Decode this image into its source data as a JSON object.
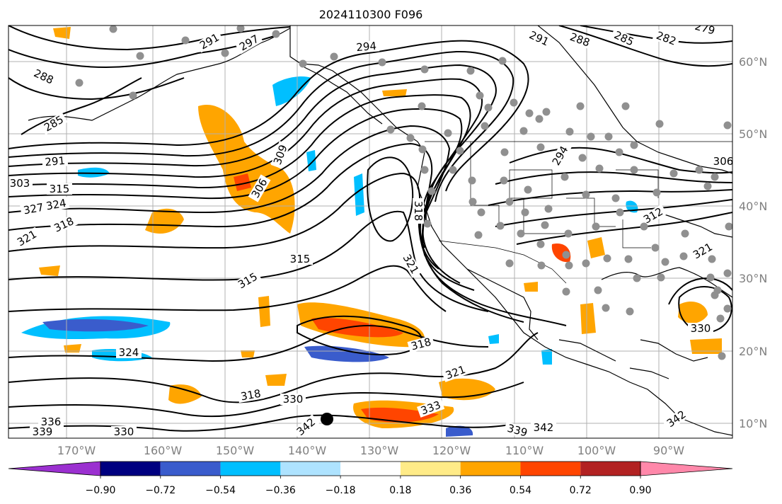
{
  "title": "2024110300 F096",
  "lat_labels": [
    "60°N",
    "50°N",
    "40°N",
    "30°N",
    "20°N",
    "10°N"
  ],
  "lon_labels": [
    "170°W",
    "160°W",
    "150°W",
    "140°W",
    "130°W",
    "120°W",
    "110°W",
    "100°W",
    "90°W"
  ],
  "colorbar": {
    "ticks": [
      "−0.90",
      "−0.72",
      "−0.54",
      "−0.36",
      "−0.18",
      "0.18",
      "0.36",
      "0.54",
      "0.72",
      "0.90"
    ],
    "colors": [
      "#9b30d0",
      "#000080",
      "#3a5ccc",
      "#00bfff",
      "#aee3ff",
      "#ffffff",
      "#ffeb88",
      "#ffa500",
      "#ff4500",
      "#b22222",
      "#ff88aa"
    ]
  },
  "contour_labels": [
    "291",
    "297",
    "294",
    "291",
    "288",
    "285",
    "282",
    "279",
    "288",
    "285",
    "291",
    "303",
    "315",
    "327",
    "324",
    "321",
    "318",
    "309",
    "306",
    "318",
    "315",
    "321",
    "318",
    "315",
    "324",
    "318",
    "330",
    "336",
    "339",
    "330",
    "342",
    "321",
    "333",
    "339",
    "342",
    "294",
    "312",
    "321",
    "330",
    "342",
    "306"
  ],
  "colors": {
    "coast": "#000000",
    "grid": "#b0b0b0",
    "stations": "#909090",
    "contour": "#000000"
  }
}
